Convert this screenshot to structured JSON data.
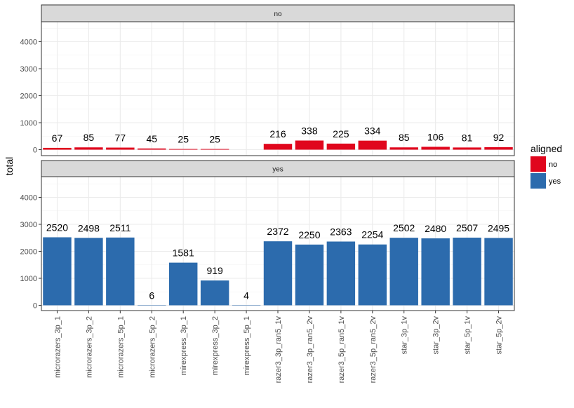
{
  "chart_data": {
    "type": "bar",
    "facet_var": "aligned",
    "ylabel": "total",
    "xlabel": "",
    "ylim": [
      0,
      4700
    ],
    "yticks": [
      0,
      1000,
      2000,
      3000,
      4000
    ],
    "grid": true,
    "theme": "bw",
    "categories": [
      "microrazers_3p_1",
      "microrazers_3p_2",
      "microrazers_5p_1",
      "microrazers_5p_2",
      "mirexpress_3p_1",
      "mirexpress_3p_2",
      "mirexpress_5p_1",
      "razer3_3p_ran5_1v",
      "razer3_3p_ran5_2v",
      "razer3_5p_ran5_1v",
      "razer3_5p_ran5_2v",
      "star_3p_1v",
      "star_3p_2v",
      "star_5p_1v",
      "star_5p_2v"
    ],
    "series": [
      {
        "name": "no",
        "color": "#e0061d",
        "values": [
          67,
          85,
          77,
          45,
          25,
          25,
          null,
          216,
          338,
          225,
          334,
          85,
          106,
          81,
          92
        ],
        "labels": [
          "67",
          "85",
          "77",
          "45",
          "25",
          "25",
          "",
          "216",
          "338",
          "225",
          "334",
          "85",
          "106",
          "81",
          "92"
        ]
      },
      {
        "name": "yes",
        "color": "#2c6bad",
        "values": [
          2520,
          2498,
          2511,
          6,
          1581,
          919,
          4,
          2372,
          2250,
          2363,
          2254,
          2502,
          2480,
          2507,
          2495
        ],
        "labels": [
          "2520",
          "2498",
          "2511",
          "6",
          "1581",
          "919",
          "4",
          "2372",
          "2250",
          "2363",
          "2254",
          "2502",
          "2480",
          "2507",
          "2495"
        ]
      }
    ],
    "legend": {
      "title": "aligned",
      "position": "right",
      "items": [
        {
          "label": "no",
          "color": "#e0061d"
        },
        {
          "label": "yes",
          "color": "#2c6bad"
        }
      ]
    }
  }
}
